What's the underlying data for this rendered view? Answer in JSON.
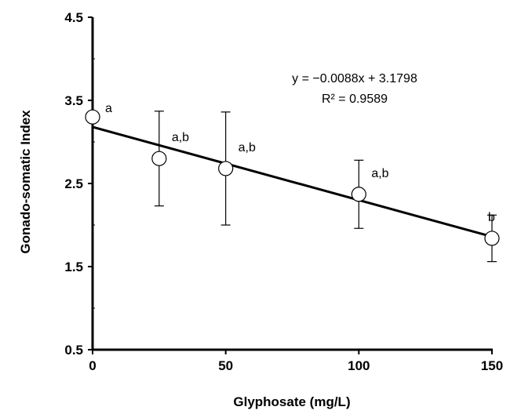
{
  "chart_data": {
    "type": "scatter",
    "title": "",
    "xlabel": "Glyphosate (mg/L)",
    "ylabel": "Gonado-somatic Index",
    "xlim": [
      0,
      150
    ],
    "ylim": [
      0.5,
      4.5
    ],
    "x_ticks": [
      "0",
      "50",
      "100",
      "150"
    ],
    "y_ticks": [
      "0.5",
      "1.5",
      "2.5",
      "3.5",
      "4.5"
    ],
    "grid": false,
    "legend": "none",
    "points": [
      {
        "x": 0,
        "y": 3.3,
        "err": 0,
        "label": "a"
      },
      {
        "x": 25,
        "y": 2.8,
        "err": 0.57,
        "label": "a,b"
      },
      {
        "x": 50,
        "y": 2.68,
        "err": 0.68,
        "label": "a,b"
      },
      {
        "x": 100,
        "y": 2.37,
        "err": 0.41,
        "label": "a,b"
      },
      {
        "x": 150,
        "y": 1.84,
        "err": 0.28,
        "label": "b"
      }
    ],
    "trendline": {
      "slope": -0.0088,
      "intercept": 3.1798
    },
    "equation": "y = −0.0088x + 3.1798",
    "r_squared": "R² = 0.9589",
    "colors": {
      "line": "#000000",
      "marker_fill": "#ffffff"
    }
  }
}
